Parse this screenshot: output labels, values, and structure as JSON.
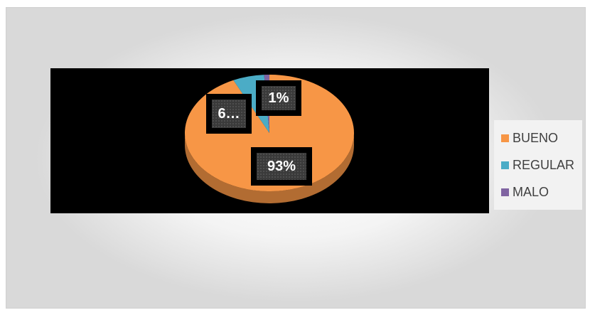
{
  "chart_data": {
    "type": "pie",
    "style": "3d",
    "categories": [
      "BUENO",
      "REGULAR",
      "MALO"
    ],
    "values": [
      93,
      6,
      1
    ],
    "data_labels": [
      "93%",
      "6…",
      "1%"
    ],
    "colors": [
      "#F79646",
      "#4BACC6",
      "#8064A2"
    ],
    "legend_position": "right",
    "plot_background": "#000000",
    "grid": false
  }
}
